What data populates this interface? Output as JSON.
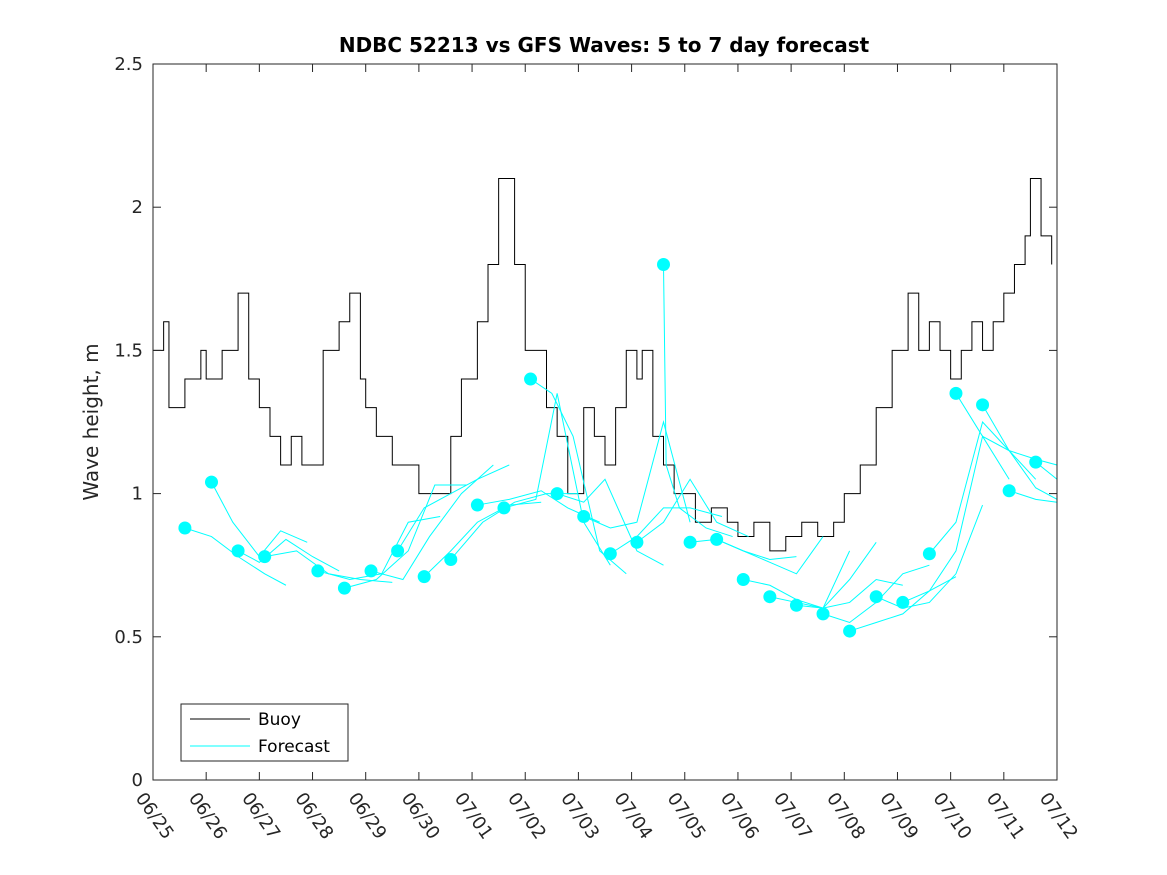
{
  "chart_data": {
    "type": "line",
    "title": "NDBC 52213 vs GFS Waves: 5 to 7 day forecast",
    "xlabel": "",
    "ylabel": "Wave height, m",
    "ylim": [
      0,
      2.5
    ],
    "xlim": [
      "06/25",
      "07/12"
    ],
    "yticks": [
      "0",
      "0.5",
      "1",
      "1.5",
      "2",
      "2.5"
    ],
    "xticks": [
      "06/25",
      "06/26",
      "06/27",
      "06/28",
      "06/29",
      "06/30",
      "07/01",
      "07/02",
      "07/03",
      "07/04",
      "07/05",
      "07/06",
      "07/07",
      "07/08",
      "07/09",
      "07/10",
      "07/11",
      "07/12"
    ],
    "grid": false,
    "legend_position": "bottom-left",
    "colors": {
      "buoy": "#000000",
      "forecast": "#00ffff"
    },
    "series": [
      {
        "name": "Buoy",
        "x_days_since_0625": [
          0.0,
          0.2,
          0.3,
          0.6,
          0.9,
          1.0,
          1.3,
          1.6,
          1.8,
          2.0,
          2.2,
          2.4,
          2.6,
          2.8,
          3.0,
          3.2,
          3.5,
          3.7,
          3.9,
          4.0,
          4.2,
          4.5,
          4.8,
          5.0,
          5.3,
          5.6,
          5.8,
          6.1,
          6.3,
          6.5,
          6.8,
          7.0,
          7.2,
          7.4,
          7.6,
          7.8,
          7.9,
          8.1,
          8.3,
          8.5,
          8.7,
          8.9,
          9.1,
          9.2,
          9.4,
          9.6,
          9.8,
          10.0,
          10.2,
          10.5,
          10.8,
          11.0,
          11.3,
          11.6,
          11.9,
          12.2,
          12.5,
          12.8,
          13.0,
          13.3,
          13.6,
          13.9,
          14.2,
          14.4,
          14.6,
          14.8,
          15.0,
          15.2,
          15.4,
          15.6,
          15.8,
          16.0,
          16.2,
          16.4,
          16.5,
          16.7,
          16.9
        ],
        "values": [
          1.5,
          1.6,
          1.3,
          1.4,
          1.5,
          1.4,
          1.5,
          1.7,
          1.4,
          1.3,
          1.2,
          1.1,
          1.2,
          1.1,
          1.1,
          1.5,
          1.6,
          1.7,
          1.4,
          1.3,
          1.2,
          1.1,
          1.1,
          1.0,
          1.0,
          1.2,
          1.4,
          1.6,
          1.8,
          2.1,
          1.8,
          1.5,
          1.5,
          1.3,
          1.2,
          1.0,
          1.0,
          1.3,
          1.2,
          1.1,
          1.3,
          1.5,
          1.4,
          1.5,
          1.2,
          1.1,
          1.0,
          1.0,
          0.9,
          0.95,
          0.9,
          0.85,
          0.9,
          0.8,
          0.85,
          0.9,
          0.85,
          0.9,
          1.0,
          1.1,
          1.3,
          1.5,
          1.7,
          1.5,
          1.6,
          1.5,
          1.4,
          1.5,
          1.6,
          1.5,
          1.6,
          1.7,
          1.8,
          1.9,
          2.1,
          1.9,
          1.8
        ]
      },
      {
        "name": "Forecast",
        "runs": [
          {
            "x": [
              0.6,
              1.1,
              1.6,
              2.1,
              2.5
            ],
            "values": [
              0.88,
              0.85,
              0.78,
              0.72,
              0.68
            ]
          },
          {
            "x": [
              1.1,
              1.5,
              2.0,
              2.4,
              2.9
            ],
            "values": [
              1.04,
              0.9,
              0.78,
              0.87,
              0.83
            ]
          },
          {
            "x": [
              1.6,
              2.0,
              2.5,
              3.0,
              3.5
            ],
            "values": [
              0.8,
              0.76,
              0.84,
              0.78,
              0.73
            ]
          },
          {
            "x": [
              2.1,
              2.7,
              3.3,
              3.9,
              4.5
            ],
            "values": [
              0.78,
              0.8,
              0.72,
              0.7,
              0.69
            ]
          },
          {
            "x": [
              3.1,
              3.7,
              4.3,
              4.8,
              5.4
            ],
            "values": [
              0.73,
              0.7,
              0.72,
              0.9,
              0.92
            ]
          },
          {
            "x": [
              3.6,
              4.2,
              4.8,
              5.3,
              5.9
            ],
            "values": [
              0.67,
              0.7,
              0.8,
              1.03,
              1.03
            ]
          },
          {
            "x": [
              4.1,
              4.7,
              5.2,
              5.8,
              6.4
            ],
            "values": [
              0.73,
              0.7,
              0.85,
              1.0,
              1.1
            ]
          },
          {
            "x": [
              4.6,
              5.1,
              5.6,
              6.1,
              6.7
            ],
            "values": [
              0.8,
              0.95,
              1.0,
              1.05,
              1.1
            ]
          },
          {
            "x": [
              5.1,
              5.6,
              6.1,
              6.7,
              7.3
            ],
            "values": [
              0.71,
              0.8,
              0.9,
              0.96,
              0.97
            ]
          },
          {
            "x": [
              5.6,
              6.2,
              6.8,
              7.4,
              8.0
            ],
            "values": [
              0.77,
              0.9,
              0.97,
              1.0,
              1.0
            ]
          },
          {
            "x": [
              6.1,
              6.7,
              7.3,
              7.8,
              8.4
            ],
            "values": [
              0.96,
              0.98,
              1.01,
              0.95,
              0.9
            ]
          },
          {
            "x": [
              6.6,
              7.2,
              7.6,
              8.1,
              8.6
            ],
            "values": [
              0.95,
              0.98,
              1.35,
              0.9,
              0.75
            ]
          },
          {
            "x": [
              7.1,
              7.5,
              7.9,
              8.4,
              8.9
            ],
            "values": [
              1.4,
              1.35,
              1.2,
              0.8,
              0.72
            ]
          },
          {
            "x": [
              7.6,
              8.1,
              8.5,
              9.1,
              9.6
            ],
            "values": [
              1.0,
              0.97,
              1.05,
              0.8,
              0.75
            ]
          },
          {
            "x": [
              8.1,
              8.6,
              9.1,
              9.6,
              10.1
            ],
            "values": [
              0.92,
              0.88,
              0.9,
              1.25,
              0.9
            ]
          },
          {
            "x": [
              8.6,
              9.1,
              9.6,
              10.1,
              10.7
            ],
            "values": [
              0.79,
              0.85,
              0.95,
              0.95,
              0.92
            ]
          },
          {
            "x": [
              9.1,
              9.6,
              10.1,
              10.6,
              11.2
            ],
            "values": [
              0.83,
              0.9,
              1.05,
              0.9,
              0.85
            ]
          },
          {
            "x": [
              9.6,
              9.65,
              9.9,
              10.4,
              10.9
            ],
            "values": [
              1.8,
              1.1,
              0.95,
              0.88,
              0.85
            ]
          },
          {
            "x": [
              10.1,
              10.6,
              11.1,
              11.6,
              12.1
            ],
            "values": [
              0.83,
              0.84,
              0.8,
              0.77,
              0.78
            ]
          },
          {
            "x": [
              10.6,
              11.1,
              11.6,
              12.1,
              12.6
            ],
            "values": [
              0.84,
              0.8,
              0.76,
              0.72,
              0.85
            ]
          },
          {
            "x": [
              11.1,
              11.6,
              12.1,
              12.6,
              13.1
            ],
            "values": [
              0.7,
              0.68,
              0.63,
              0.6,
              0.8
            ]
          },
          {
            "x": [
              11.6,
              12.1,
              12.6,
              13.1,
              13.6
            ],
            "values": [
              0.64,
              0.62,
              0.6,
              0.7,
              0.83
            ]
          },
          {
            "x": [
              12.1,
              12.6,
              13.1,
              13.6,
              14.1
            ],
            "values": [
              0.61,
              0.6,
              0.62,
              0.7,
              0.68
            ]
          },
          {
            "x": [
              12.6,
              13.1,
              13.6,
              14.1,
              14.6
            ],
            "values": [
              0.58,
              0.55,
              0.62,
              0.72,
              0.75
            ]
          },
          {
            "x": [
              13.1,
              13.6,
              14.1,
              14.6,
              15.1
            ],
            "values": [
              0.52,
              0.55,
              0.58,
              0.66,
              0.71
            ]
          },
          {
            "x": [
              13.6,
              14.1,
              14.6,
              15.1,
              15.6
            ],
            "values": [
              0.64,
              0.6,
              0.62,
              0.72,
              0.96
            ]
          },
          {
            "x": [
              14.1,
              14.6,
              15.1,
              15.6,
              16.1
            ],
            "values": [
              0.62,
              0.66,
              0.8,
              1.2,
              1.05
            ]
          },
          {
            "x": [
              14.6,
              15.1,
              15.6,
              16.1,
              16.6
            ],
            "values": [
              0.79,
              0.9,
              1.25,
              1.15,
              1.05
            ]
          },
          {
            "x": [
              15.1,
              15.6,
              16.1,
              16.6,
              17.0
            ],
            "values": [
              1.35,
              1.2,
              1.15,
              1.02,
              0.98
            ]
          },
          {
            "x": [
              15.6,
              16.1,
              16.6,
              17.0
            ],
            "values": [
              1.31,
              1.15,
              1.12,
              1.1
            ]
          },
          {
            "x": [
              16.1,
              16.6,
              17.0
            ],
            "values": [
              1.01,
              0.98,
              0.97
            ]
          },
          {
            "x": [
              16.6,
              17.0
            ],
            "values": [
              1.11,
              1.05
            ]
          }
        ],
        "dots_x": [
          0.6,
          1.1,
          1.6,
          2.1,
          3.1,
          3.6,
          4.1,
          4.6,
          5.1,
          5.6,
          6.1,
          6.6,
          7.1,
          7.6,
          8.1,
          8.6,
          9.1,
          9.6,
          10.1,
          10.6,
          11.1,
          11.6,
          12.1,
          12.6,
          13.1,
          13.6,
          14.1,
          14.6,
          15.1,
          15.6,
          16.1,
          16.6
        ],
        "dots_values": [
          0.88,
          1.04,
          0.8,
          0.78,
          0.73,
          0.67,
          0.73,
          0.8,
          0.71,
          0.77,
          0.96,
          0.95,
          1.4,
          1.0,
          0.92,
          0.79,
          0.83,
          1.8,
          0.83,
          0.84,
          0.7,
          0.64,
          0.61,
          0.58,
          0.52,
          0.64,
          0.62,
          0.79,
          1.35,
          1.31,
          1.01,
          1.11
        ]
      }
    ]
  }
}
